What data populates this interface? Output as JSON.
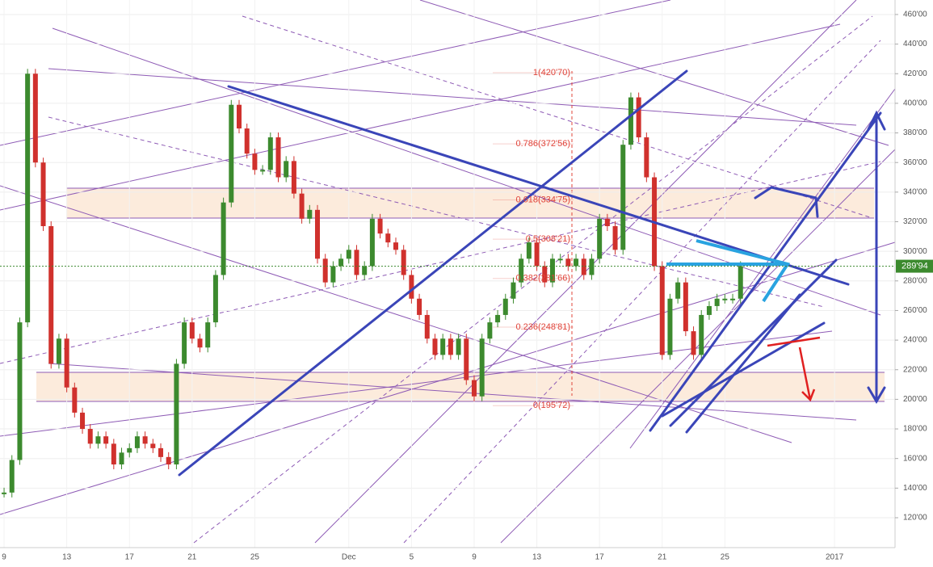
{
  "chart_data": {
    "type": "candlestick",
    "xlim": [
      -0.26,
      56.86
    ],
    "ylim": [
      99.8,
      469.8
    ],
    "xticks": [
      {
        "value": 0,
        "label": "9"
      },
      {
        "value": 4,
        "label": "13"
      },
      {
        "value": 8,
        "label": "17"
      },
      {
        "value": 12,
        "label": "21"
      },
      {
        "value": 16,
        "label": "25"
      },
      {
        "value": 22,
        "label": "Dec"
      },
      {
        "value": 26,
        "label": "5"
      },
      {
        "value": 30,
        "label": "9"
      },
      {
        "value": 34,
        "label": "13"
      },
      {
        "value": 38,
        "label": "17"
      },
      {
        "value": 42,
        "label": "21"
      },
      {
        "value": 46,
        "label": "25"
      },
      {
        "value": 53,
        "label": "2017"
      }
    ],
    "yticks": [
      {
        "value": 120,
        "label": "120'00"
      },
      {
        "value": 140,
        "label": "140'00"
      },
      {
        "value": 160,
        "label": "160'00"
      },
      {
        "value": 180,
        "label": "180'00"
      },
      {
        "value": 200,
        "label": "200'00"
      },
      {
        "value": 220,
        "label": "220'00"
      },
      {
        "value": 240,
        "label": "240'00"
      },
      {
        "value": 260,
        "label": "260'00"
      },
      {
        "value": 280,
        "label": "280'00"
      },
      {
        "value": 300,
        "label": "300'00"
      },
      {
        "value": 320,
        "label": "320'00"
      },
      {
        "value": 340,
        "label": "340'00"
      },
      {
        "value": 360,
        "label": "360'00"
      },
      {
        "value": 380,
        "label": "380'00"
      },
      {
        "value": 400,
        "label": "400'00"
      },
      {
        "value": 420,
        "label": "420'00"
      },
      {
        "value": 440,
        "label": "440'00"
      },
      {
        "value": 460,
        "label": "460'00"
      }
    ],
    "up_color": "#3c8a2e",
    "down_color": "#d0312d",
    "x": [
      0,
      0.5,
      1,
      1.5,
      2,
      2.5,
      3,
      3.5,
      4,
      4.5,
      5,
      5.5,
      6,
      6.5,
      7,
      7.5,
      8,
      8.5,
      9,
      9.5,
      10,
      10.5,
      11,
      11.5,
      12,
      12.5,
      13,
      13.5,
      14,
      14.5,
      15,
      15.5,
      16,
      16.5,
      17,
      17.5,
      18,
      18.5,
      19,
      19.5,
      20,
      20.5,
      21,
      21.5,
      22,
      22.5,
      23,
      23.5,
      24,
      24.5,
      25,
      25.5,
      26,
      26.5,
      27,
      27.5,
      28,
      28.5,
      29,
      29.5,
      30,
      30.5,
      31,
      31.5,
      32,
      32.5,
      33,
      33.5,
      34,
      34.5,
      35,
      35.5,
      36,
      36.5,
      37,
      37.5,
      38,
      38.5,
      39,
      39.5,
      40,
      40.5,
      41,
      41.5,
      42,
      42.5,
      43,
      43.5,
      44,
      44.5,
      45,
      45.5,
      46,
      46.5,
      47
    ],
    "values": [
      137,
      159,
      252,
      420,
      360,
      317,
      224,
      241,
      208,
      191,
      180,
      170,
      175,
      170,
      156,
      164,
      167,
      175,
      170,
      167,
      161,
      156,
      224,
      252,
      241,
      235,
      252,
      284,
      333,
      399,
      383,
      366,
      355,
      355,
      377,
      350,
      361,
      339,
      322,
      328,
      295,
      279,
      290,
      295,
      301,
      284,
      290,
      322,
      312,
      306,
      301,
      284,
      268,
      257,
      241,
      230,
      241,
      230,
      241,
      213,
      202,
      241,
      252,
      257,
      268,
      279,
      295,
      306,
      290,
      279,
      295,
      295,
      290,
      295,
      284,
      295,
      322,
      317,
      301,
      372,
      404,
      377,
      350,
      290,
      230,
      268,
      279,
      246,
      230,
      257,
      263,
      268,
      268,
      268,
      290
    ],
    "last_price": {
      "value": 289.94,
      "label": "289'94",
      "color": "#3c8a2e"
    },
    "fib_levels": [
      {
        "value": 420.7,
        "label": "1(420'70)"
      },
      {
        "value": 372.56,
        "label": "0.786(372'56)"
      },
      {
        "value": 334.75,
        "label": "0.618(334'75)"
      },
      {
        "value": 308.21,
        "label": "0.5(308'21)"
      },
      {
        "value": 281.66,
        "label": "0.382(281'66)"
      },
      {
        "value": 248.81,
        "label": "0.236(248'81)"
      },
      {
        "value": 195.72,
        "label": "0(195'72)"
      }
    ]
  }
}
